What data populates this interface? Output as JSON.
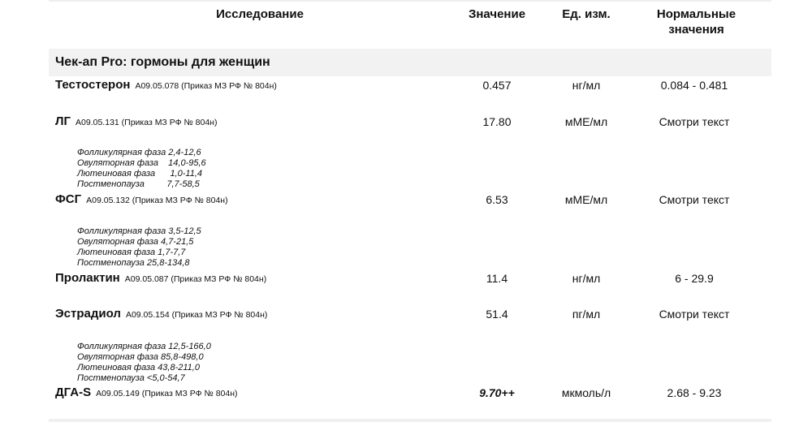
{
  "header": {
    "study": "Исследование",
    "value": "Значение",
    "unit": "Ед. изм.",
    "norm": "Нормальные значения"
  },
  "section": "Чек-ап Pro: гормоны для женщин",
  "rows": [
    {
      "name": "Тестостерон",
      "code": "A09.05.078 (Приказ МЗ РФ № 804н)",
      "value": "0.457",
      "unit": "нг/мл",
      "norm": "0.084 - 0.481",
      "notes": []
    },
    {
      "name": "ЛГ",
      "code": "A09.05.131 (Приказ МЗ РФ № 804н)",
      "value": "17.80",
      "unit": "мМЕ/мл",
      "norm": "Смотри текст",
      "notes": [
        "Фолликулярная фаза 2,4-12,6",
        "Овуляторная фаза    14,0-95,6",
        "Лютеиновая фаза      1,0-11,4",
        "Постменопауза         7,7-58,5"
      ]
    },
    {
      "name": "ФСГ",
      "code": "A09.05.132 (Приказ МЗ РФ № 804н)",
      "value": "6.53",
      "unit": "мМЕ/мл",
      "norm": "Смотри текст",
      "notes": [
        "Фолликулярная фаза 3,5-12,5",
        "Овуляторная фаза 4,7-21,5",
        "Лютеиновая фаза 1,7-7,7",
        "Постменопауза 25,8-134,8"
      ]
    },
    {
      "name": "Пролактин",
      "code": "A09.05.087 (Приказ МЗ РФ № 804н)",
      "value": "11.4",
      "unit": "нг/мл",
      "norm": "6 - 29.9",
      "notes": []
    },
    {
      "name": "Эстрадиол",
      "code": "A09.05.154 (Приказ МЗ РФ № 804н)",
      "value": "51.4",
      "unit": "пг/мл",
      "norm": "Смотри текст",
      "notes": [
        "Фолликулярная фаза 12,5-166,0",
        "Овуляторная фаза 85,8-498,0",
        "Лютеиновая фаза 43,8-211,0",
        "Постменопауза <5,0-54,7"
      ]
    },
    {
      "name": "ДГА-S",
      "code": "A09.05.149 (Приказ МЗ РФ № 804н)",
      "value": "9.70++",
      "unit": "мкмоль/л",
      "norm": "2.68 - 9.23",
      "notes": [],
      "flag": "above-range"
    }
  ]
}
